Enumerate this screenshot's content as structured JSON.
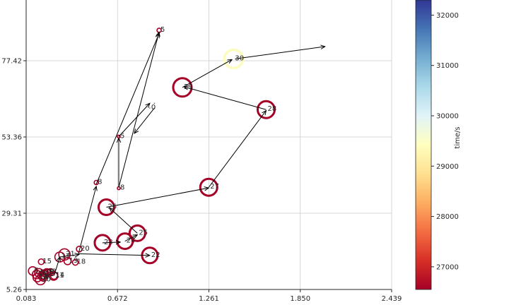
{
  "chart_data": {
    "type": "scatter",
    "title": "",
    "xlabel": "",
    "ylabel": "",
    "xlim": [
      0.083,
      2.439
    ],
    "ylim": [
      5.26,
      77.42
    ],
    "x_ticks": [
      0.083,
      0.672,
      1.261,
      1.85,
      2.439
    ],
    "x_tick_labels": [
      "0.083",
      "0.672",
      "1.261",
      "1.850",
      "2.439"
    ],
    "y_ticks": [
      5.26,
      29.31,
      53.36,
      77.42
    ],
    "y_tick_labels": [
      "5.26",
      "29.31",
      "53.36",
      "77.42"
    ],
    "grid": true,
    "point_color": "#a50026",
    "highlight_color": "#fdfcbf",
    "points": [
      {
        "label": "1",
        "x": 0.185,
        "y": 9.6,
        "r": 6
      },
      {
        "label": "2",
        "x": 0.205,
        "y": 10.4,
        "r": 5
      },
      {
        "label": "3",
        "x": 0.24,
        "y": 10.7,
        "r": 5
      },
      {
        "label": "4",
        "x": 0.195,
        "y": 9.2,
        "r": 6
      },
      {
        "label": "5",
        "x": 0.94,
        "y": 87.0,
        "r": 3
      },
      {
        "label": "6",
        "x": 0.125,
        "y": 11.1,
        "r": 6
      },
      {
        "label": "7",
        "x": 0.215,
        "y": 10.7,
        "r": 5
      },
      {
        "label": "8",
        "x": 0.223,
        "y": 10.6,
        "r": 5
      },
      {
        "label": "9",
        "x": 0.165,
        "y": 10.5,
        "r": 6
      },
      {
        "label": "10",
        "x": 0.175,
        "y": 8.3,
        "r": 7
      },
      {
        "label": "11",
        "x": 0.26,
        "y": 9.5,
        "r": 6
      },
      {
        "label": "12",
        "x": 0.197,
        "y": 9.9,
        "r": 6
      },
      {
        "label": "13",
        "x": 0.155,
        "y": 9.0,
        "r": 6
      },
      {
        "label": "14",
        "x": 0.263,
        "y": 9.6,
        "r": 5
      },
      {
        "label": "15",
        "x": 0.18,
        "y": 14.0,
        "r": 4
      },
      {
        "label": "16",
        "x": 0.15,
        "y": 10.0,
        "r": 6
      },
      {
        "label": "17",
        "x": 0.3,
        "y": 15.5,
        "r": 7
      },
      {
        "label": "18",
        "x": 0.4,
        "y": 13.8,
        "r": 4
      },
      {
        "label": "19",
        "x": 0.35,
        "y": 14.2,
        "r": 5
      },
      {
        "label": "20",
        "x": 0.425,
        "y": 18.0,
        "r": 4
      },
      {
        "label": "21",
        "x": 0.33,
        "y": 16.3,
        "r": 8
      },
      {
        "label": "22",
        "x": 0.88,
        "y": 16.0,
        "r": 11
      },
      {
        "label": "23",
        "x": 0.575,
        "y": 20.0,
        "r": 11
      },
      {
        "label": "24",
        "x": 0.72,
        "y": 20.5,
        "r": 11
      },
      {
        "label": "25",
        "x": 0.8,
        "y": 23.0,
        "r": 11
      },
      {
        "label": "26",
        "x": 0.6,
        "y": 31.2,
        "r": 11
      },
      {
        "label": "27",
        "x": 1.26,
        "y": 37.5,
        "r": 12
      },
      {
        "label": "28",
        "x": 1.63,
        "y": 62.0,
        "r": 12
      },
      {
        "label": "29",
        "x": 1.09,
        "y": 69.0,
        "r": 13
      },
      {
        "label": "30",
        "x": 1.42,
        "y": 78.0,
        "r": 13,
        "highlight": true
      },
      {
        "label": "0",
        "x": 0.88,
        "y": 62.5,
        "r": 0
      },
      {
        "label": "",
        "x": 0.91,
        "y": 64.0,
        "r": 0
      },
      {
        "label": "5",
        "x": 0.68,
        "y": 53.5,
        "r": 2
      },
      {
        "label": "8",
        "x": 0.535,
        "y": 39.0,
        "r": 3
      },
      {
        "label": "8",
        "x": 0.68,
        "y": 37.2,
        "r": 2
      }
    ],
    "arrows": [
      [
        0.185,
        9.6,
        0.185,
        9.6
      ],
      [
        0.263,
        9.6,
        0.3,
        15.5
      ],
      [
        0.3,
        15.5,
        0.425,
        16.3
      ],
      [
        0.42,
        16.5,
        0.88,
        16.0
      ],
      [
        0.42,
        16.5,
        0.535,
        37.8
      ],
      [
        0.535,
        38.5,
        0.94,
        86.0
      ],
      [
        0.68,
        37.5,
        0.94,
        86.5
      ],
      [
        0.68,
        37.5,
        0.68,
        53.0
      ],
      [
        0.68,
        53.5,
        0.88,
        64.0
      ],
      [
        0.91,
        62.5,
        0.78,
        54.5
      ],
      [
        0.575,
        20.0,
        0.69,
        20.2
      ],
      [
        0.72,
        20.5,
        0.8,
        22.5
      ],
      [
        0.8,
        23.0,
        0.62,
        31.0
      ],
      [
        0.6,
        31.2,
        1.26,
        37.3
      ],
      [
        1.26,
        37.5,
        1.63,
        61.7
      ],
      [
        1.63,
        62.0,
        1.1,
        69.2
      ],
      [
        1.09,
        69.0,
        1.41,
        77.8
      ],
      [
        1.43,
        78.0,
        2.01,
        81.9
      ]
    ],
    "colorbar": {
      "label": "time/s",
      "ticks": [
        27000,
        28000,
        29000,
        30000,
        31000,
        32000
      ],
      "tick_labels": [
        "27000",
        "28000",
        "29000",
        "30000",
        "31000",
        "32000"
      ],
      "min": 26550,
      "max": 32300,
      "colors": [
        "#a50026",
        "#d73027",
        "#f46d43",
        "#fdae61",
        "#fee090",
        "#ffffbf",
        "#e0f3f8",
        "#abd9e9",
        "#74add1",
        "#4575b4",
        "#313695"
      ]
    }
  }
}
